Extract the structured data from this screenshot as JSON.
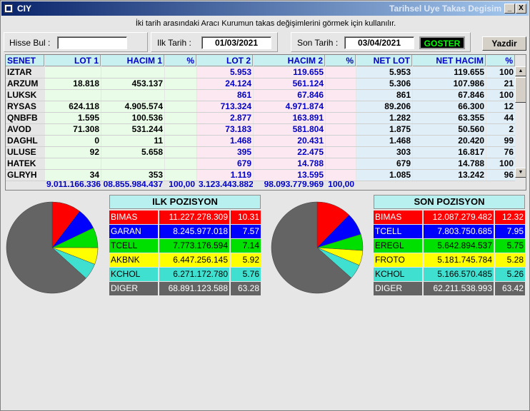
{
  "window": {
    "title": "CIY",
    "subtitle": "Tarihsel Uye Takas Degisim"
  },
  "hint": "İki tarih arasındaki  Aracı Kurumun takas değişimlerini görmek için kullanılır.",
  "search": {
    "label": "Hisse Bul :",
    "value": ""
  },
  "start_date": {
    "label": "Ilk Tarih :",
    "value": "01/03/2021"
  },
  "end_date": {
    "label": "Son Tarih :",
    "value": "03/04/2021"
  },
  "buttons": {
    "show": "GOSTER",
    "print": "Yazdir",
    "minimize": "_",
    "close": "X"
  },
  "table": {
    "headers": [
      "SENET",
      "LOT 1",
      "HACIM 1",
      "%",
      "LOT 2",
      "HACIM 2",
      "%",
      "NET LOT",
      "NET HACIM",
      "%"
    ],
    "rows": [
      [
        "IZTAR",
        "",
        "",
        "",
        "5.953",
        "119.655",
        "",
        "5.953",
        "119.655",
        "100"
      ],
      [
        "ARZUM",
        "18.818",
        "453.137",
        "",
        "24.124",
        "561.124",
        "",
        "5.306",
        "107.986",
        "21"
      ],
      [
        "LUKSK",
        "",
        "",
        "",
        "861",
        "67.846",
        "",
        "861",
        "67.846",
        "100"
      ],
      [
        "RYSAS",
        "624.118",
        "4.905.574",
        "",
        "713.324",
        "4.971.874",
        "",
        "89.206",
        "66.300",
        "12"
      ],
      [
        "QNBFB",
        "1.595",
        "100.536",
        "",
        "2.877",
        "163.891",
        "",
        "1.282",
        "63.355",
        "44"
      ],
      [
        "AVOD",
        "71.308",
        "531.244",
        "",
        "73.183",
        "581.804",
        "",
        "1.875",
        "50.560",
        "2"
      ],
      [
        "DAGHL",
        "0",
        "11",
        "",
        "1.468",
        "20.431",
        "",
        "1.468",
        "20.420",
        "99"
      ],
      [
        "ULUSE",
        "92",
        "5.658",
        "",
        "395",
        "22.475",
        "",
        "303",
        "16.817",
        "76"
      ],
      [
        "HATEK",
        "",
        "",
        "",
        "679",
        "14.788",
        "",
        "679",
        "14.788",
        "100"
      ],
      [
        "GLRYH",
        "34",
        "353",
        "",
        "1.119",
        "13.595",
        "",
        "1.085",
        "13.242",
        "96"
      ]
    ],
    "totals": [
      "",
      "9.011.166.336",
      "08.855.984.437",
      "100,00",
      "3.123.443.882",
      "98.093.779.969",
      "100,00",
      "",
      "",
      ""
    ]
  },
  "ilk_pozisyon": {
    "title": "ILK POZISYON",
    "rows": [
      {
        "name": "BIMAS",
        "value": "11.227.278.309",
        "pct": "10.31",
        "pct_num": 10.31,
        "color": "#ff0000",
        "text": "#ffffff"
      },
      {
        "name": "GARAN",
        "value": "8.245.977.018",
        "pct": "7.57",
        "pct_num": 7.57,
        "color": "#0000ff",
        "text": "#ffffff"
      },
      {
        "name": "TCELL",
        "value": "7.773.176.594",
        "pct": "7.14",
        "pct_num": 7.14,
        "color": "#00e000",
        "text": "#000000"
      },
      {
        "name": "AKBNK",
        "value": "6.447.256.145",
        "pct": "5.92",
        "pct_num": 5.92,
        "color": "#ffff00",
        "text": "#000000"
      },
      {
        "name": "KCHOL",
        "value": "6.271.172.780",
        "pct": "5.76",
        "pct_num": 5.76,
        "color": "#40e0d0",
        "text": "#000000"
      },
      {
        "name": "DIGER",
        "value": "68.891.123.588",
        "pct": "63.28",
        "pct_num": 63.28,
        "color": "#646464",
        "text": "#ffffff"
      }
    ]
  },
  "son_pozisyon": {
    "title": "SON POZISYON",
    "rows": [
      {
        "name": "BIMAS",
        "value": "12.087.279.482",
        "pct": "12.32",
        "pct_num": 12.32,
        "color": "#ff0000",
        "text": "#ffffff"
      },
      {
        "name": "TCELL",
        "value": "7.803.750.685",
        "pct": "7.95",
        "pct_num": 7.95,
        "color": "#0000ff",
        "text": "#ffffff"
      },
      {
        "name": "EREGL",
        "value": "5.642.894.537",
        "pct": "5.75",
        "pct_num": 5.75,
        "color": "#00e000",
        "text": "#000000"
      },
      {
        "name": "FROTO",
        "value": "5.181.745.784",
        "pct": "5.28",
        "pct_num": 5.28,
        "color": "#ffff00",
        "text": "#000000"
      },
      {
        "name": "KCHOL",
        "value": "5.166.570.485",
        "pct": "5.26",
        "pct_num": 5.26,
        "color": "#40e0d0",
        "text": "#000000"
      },
      {
        "name": "DIGER",
        "value": "62.211.538.993",
        "pct": "63.42",
        "pct_num": 63.42,
        "color": "#646464",
        "text": "#ffffff"
      }
    ]
  }
}
